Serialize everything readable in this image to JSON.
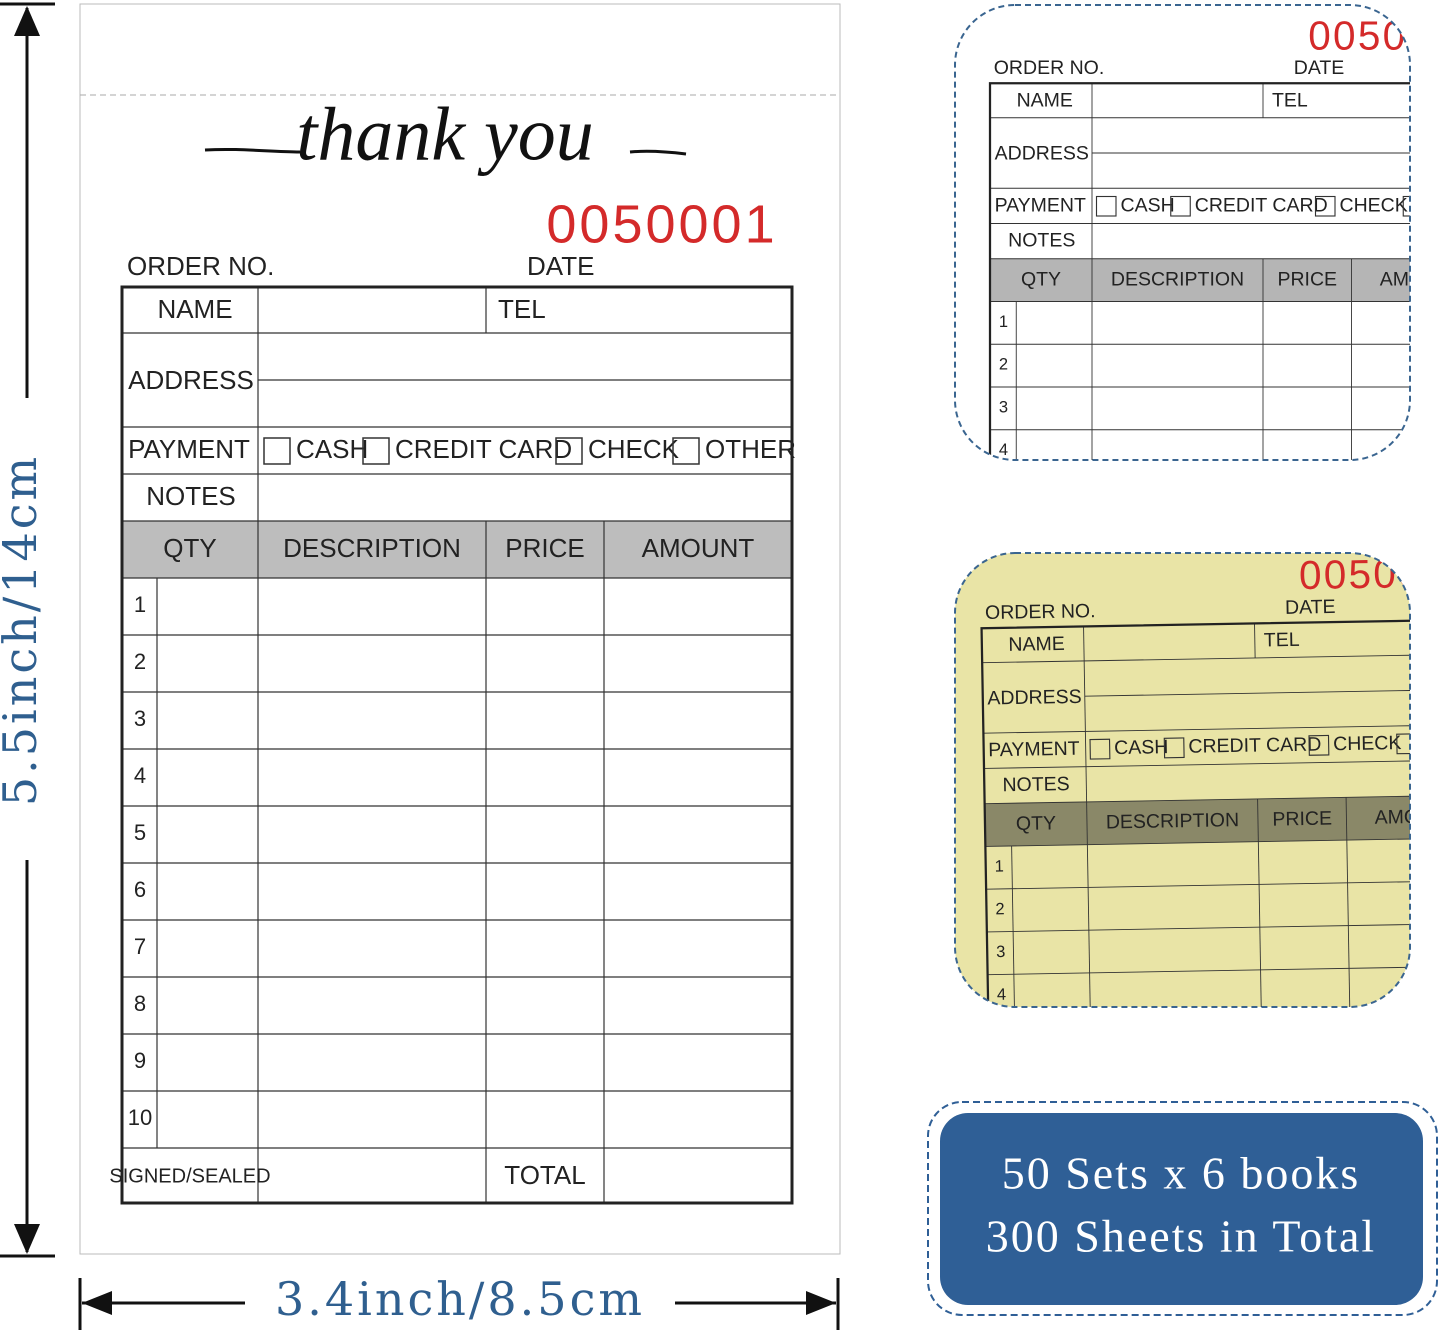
{
  "dimensions": {
    "height": "5.5inch/14cm",
    "width": "3.4inch/8.5cm"
  },
  "form": {
    "heading": "thank you",
    "order_number": "0050001",
    "order_label": "ORDER NO.",
    "date_label": "DATE",
    "name_label": "NAME",
    "tel_label": "TEL",
    "address_label": "ADDRESS",
    "payment_label": "PAYMENT",
    "payment_options": [
      "CASH",
      "CREDIT CARD",
      "CHECK",
      "OTHER"
    ],
    "notes_label": "NOTES",
    "columns": [
      "QTY",
      "DESCRIPTION",
      "PRICE",
      "AMOUNT"
    ],
    "rows": [
      1,
      2,
      3,
      4,
      5,
      6,
      7,
      8,
      9,
      10
    ],
    "signed_label": "SIGNED/SEALED",
    "total_label": "TOTAL"
  },
  "badge": {
    "lines": [
      "50 Sets x 6 books",
      "300 Sheets in Total"
    ]
  }
}
